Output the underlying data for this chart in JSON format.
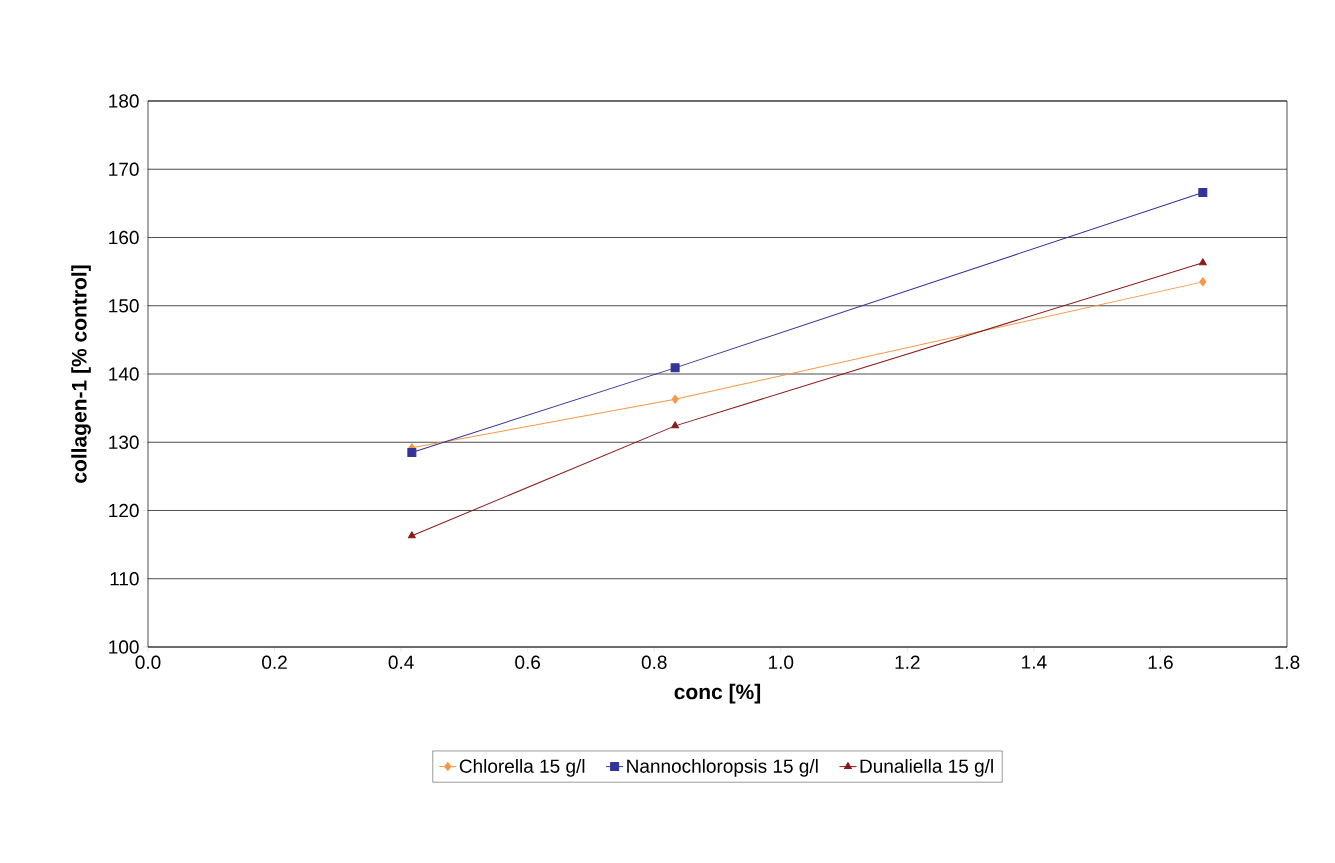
{
  "chart_data": {
    "type": "line",
    "xlabel": "conc [%]",
    "ylabel": "collagen-1 [% control]",
    "x": [
      0.417,
      0.833,
      1.667
    ],
    "series": [
      {
        "name": "Chlorella 15 g/l",
        "color": "#f79646",
        "marker": "diamond",
        "values": [
          129.2,
          136.3,
          153.5
        ]
      },
      {
        "name": "Nannochloropsis 15 g/l",
        "color": "#333399",
        "marker": "square",
        "values": [
          128.5,
          140.9,
          166.6
        ]
      },
      {
        "name": "Dunaliella 15 g/l",
        "color": "#8b1a1a",
        "marker": "triangle",
        "values": [
          116.3,
          132.4,
          156.3
        ]
      }
    ],
    "xlim": [
      0,
      1.8
    ],
    "ylim": [
      100,
      180
    ],
    "xticks": [
      {
        "value": 0,
        "label": "0.0"
      },
      {
        "value": 0.2,
        "label": "0.2"
      },
      {
        "value": 0.4,
        "label": "0.4"
      },
      {
        "value": 0.6,
        "label": "0.6"
      },
      {
        "value": 0.8,
        "label": "0.8"
      },
      {
        "value": 1.0,
        "label": "1.0"
      },
      {
        "value": 1.2,
        "label": "1.2"
      },
      {
        "value": 1.4,
        "label": "1.4"
      },
      {
        "value": 1.6,
        "label": "1.6"
      },
      {
        "value": 1.8,
        "label": "1.8"
      }
    ],
    "yticks": [
      100,
      110,
      120,
      130,
      140,
      150,
      160,
      170,
      180
    ],
    "grid": "y",
    "legend": "bottom",
    "line_style": "solid"
  }
}
